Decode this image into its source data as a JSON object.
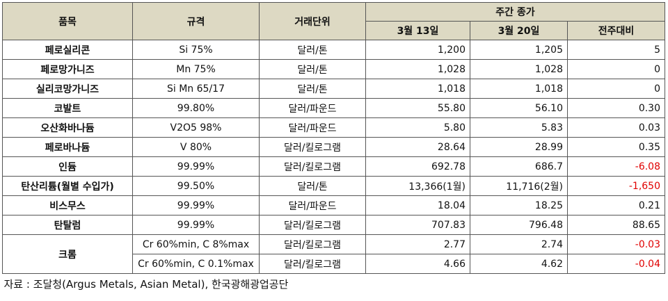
{
  "headers": {
    "item": "품목",
    "spec": "규격",
    "unit": "거래단위",
    "weekly_close": "주간 종가",
    "date1": "3월 13일",
    "date2": "3월 20일",
    "change": "전주대비"
  },
  "rows": [
    {
      "item": "페로실리콘",
      "spec": "Si 75%",
      "unit": "달러/톤",
      "v1": "1,200",
      "v2": "1,205",
      "change": "5",
      "negative": false
    },
    {
      "item": "페로망가니즈",
      "spec": "Mn 75%",
      "unit": "달러/톤",
      "v1": "1,028",
      "v2": "1,028",
      "change": "0",
      "negative": false
    },
    {
      "item": "실리코망가니즈",
      "spec": "Si Mn 65/17",
      "unit": "달러/톤",
      "v1": "1,018",
      "v2": "1,018",
      "change": "0",
      "negative": false
    },
    {
      "item": "코발트",
      "spec": "99.80%",
      "unit": "달러/파운드",
      "v1": "55.80",
      "v2": "56.10",
      "change": "0.30",
      "negative": false
    },
    {
      "item": "오산화바나듐",
      "spec": "V2O5 98%",
      "unit": "달러/파운드",
      "v1": "5.80",
      "v2": "5.83",
      "change": "0.03",
      "negative": false
    },
    {
      "item": "페로바나듐",
      "spec": "V 80%",
      "unit": "달러/킬로그램",
      "v1": "28.64",
      "v2": "28.99",
      "change": "0.35",
      "negative": false
    },
    {
      "item": "인듐",
      "spec": "99.99%",
      "unit": "달러/킬로그램",
      "v1": "692.78",
      "v2": "686.7",
      "change": "-6.08",
      "negative": true
    },
    {
      "item": "탄산리튬(월별 수입가)",
      "spec": "99.50%",
      "unit": "달러/톤",
      "v1": "13,366(1월)",
      "v2": "11,716(2월)",
      "change": "-1,650",
      "negative": true
    },
    {
      "item": "비스무스",
      "spec": "99.99%",
      "unit": "달러/파운드",
      "v1": "18.04",
      "v2": "18.25",
      "change": "0.21",
      "negative": false
    },
    {
      "item": "탄탈럼",
      "spec": "99.99%",
      "unit": "달러/킬로그램",
      "v1": "707.83",
      "v2": "796.48",
      "change": "88.65",
      "negative": false
    }
  ],
  "chrome": {
    "item": "크롬",
    "sub": [
      {
        "spec": "Cr 60%min, C 8%max",
        "unit": "달러/킬로그램",
        "v1": "2.77",
        "v2": "2.74",
        "change": "-0.03",
        "negative": true
      },
      {
        "spec": "Cr 60%min, C 0.1%max",
        "unit": "달러/킬로그램",
        "v1": "4.66",
        "v2": "4.62",
        "change": "-0.04",
        "negative": true
      }
    ]
  },
  "source": "자료 : 조달청(Argus Metals, Asian Metal), 한국광해광업공단",
  "colors": {
    "header_bg": "#ddd9c3",
    "negative": "#e00000"
  }
}
